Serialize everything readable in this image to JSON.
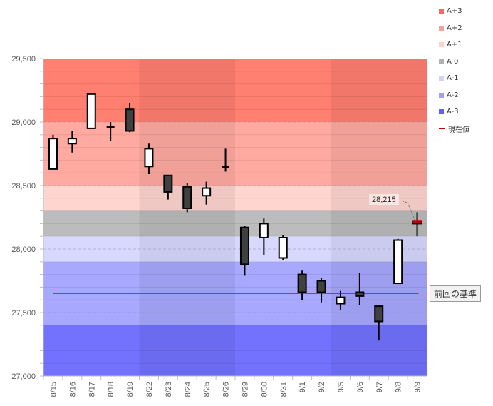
{
  "chart_data": {
    "type": "candlestick",
    "title": "",
    "xlabel": "",
    "ylabel": "",
    "ylim": [
      27000,
      29500
    ],
    "y_major_ticks": [
      27000,
      27500,
      28000,
      28500,
      29000,
      29500
    ],
    "y_tick_labels": [
      "27,000",
      "27,500",
      "28,000",
      "28,500",
      "29,000",
      "29,500"
    ],
    "y_minor_step": 100,
    "grid": true,
    "legend_position": "right",
    "categories": [
      "8/15",
      "8/16",
      "8/17",
      "8/18",
      "8/19",
      "8/22",
      "8/23",
      "8/24",
      "8/25",
      "8/26",
      "8/29",
      "8/30",
      "8/31",
      "9/1",
      "9/2",
      "9/5",
      "9/6",
      "9/7",
      "9/8",
      "9/9"
    ],
    "ohlc": [
      {
        "open": 28630,
        "high": 28900,
        "low": 28630,
        "close": 28870
      },
      {
        "open": 28830,
        "high": 28930,
        "low": 28760,
        "close": 28870
      },
      {
        "open": 28950,
        "high": 29220,
        "low": 28950,
        "close": 29220
      },
      {
        "open": 28950,
        "high": 29000,
        "low": 28850,
        "close": 28960
      },
      {
        "open": 29100,
        "high": 29150,
        "low": 28920,
        "close": 28930
      },
      {
        "open": 28650,
        "high": 28830,
        "low": 28590,
        "close": 28790
      },
      {
        "open": 28580,
        "high": 28580,
        "low": 28390,
        "close": 28450
      },
      {
        "open": 28490,
        "high": 28520,
        "low": 28290,
        "close": 28320
      },
      {
        "open": 28420,
        "high": 28530,
        "low": 28350,
        "close": 28480
      },
      {
        "open": 28640,
        "high": 28790,
        "low": 28610,
        "close": 28645
      },
      {
        "open": 28170,
        "high": 28180,
        "low": 27790,
        "close": 27880
      },
      {
        "open": 28090,
        "high": 28240,
        "low": 27950,
        "close": 28200
      },
      {
        "open": 27930,
        "high": 28110,
        "low": 27910,
        "close": 28090
      },
      {
        "open": 27800,
        "high": 27830,
        "low": 27600,
        "close": 27660
      },
      {
        "open": 27750,
        "high": 27770,
        "low": 27580,
        "close": 27660
      },
      {
        "open": 27570,
        "high": 27670,
        "low": 27520,
        "close": 27620
      },
      {
        "open": 27660,
        "high": 27810,
        "low": 27560,
        "close": 27630
      },
      {
        "open": 27550,
        "high": 27550,
        "low": 27280,
        "close": 27430
      },
      {
        "open": 27730,
        "high": 28080,
        "low": 27730,
        "close": 28070
      },
      {
        "open": 28200,
        "high": 28290,
        "low": 28100,
        "close": 28215
      }
    ],
    "bands": [
      {
        "name": "A+3",
        "from": 29000,
        "to": 29500,
        "color": "#ff7f70"
      },
      {
        "name": "A+2",
        "from": 28500,
        "to": 29000,
        "color": "#ffaaa0"
      },
      {
        "name": "A+1",
        "from": 28300,
        "to": 28500,
        "color": "#ffd5d0"
      },
      {
        "name": "A 0",
        "from": 28100,
        "to": 28300,
        "color": "#bcbcbc"
      },
      {
        "name": "A-1",
        "from": 27900,
        "to": 28100,
        "color": "#d8d8ff"
      },
      {
        "name": "A-2",
        "from": 27400,
        "to": 27900,
        "color": "#a8a8ff"
      },
      {
        "name": "A-3",
        "from": 27000,
        "to": 27400,
        "color": "#7272ff"
      }
    ],
    "shaded_weeks": [
      [
        5,
        9
      ],
      [
        15,
        19
      ]
    ],
    "reference_line": {
      "label": "前回の基準",
      "value": 27650,
      "color": "#e00000"
    },
    "current_value": {
      "label": "現在値",
      "value": 28215,
      "display": "28,215",
      "color": "#c00000"
    },
    "legend": [
      {
        "label": "A+3",
        "color": "#f26b5e",
        "kind": "swatch"
      },
      {
        "label": "A+2",
        "color": "#f9a097",
        "kind": "swatch"
      },
      {
        "label": "A+1",
        "color": "#fcd2cd",
        "kind": "swatch"
      },
      {
        "label": "A 0",
        "color": "#b3b3b3",
        "kind": "swatch"
      },
      {
        "label": "A-1",
        "color": "#d2d2fa",
        "kind": "swatch"
      },
      {
        "label": "A-2",
        "color": "#9f9ff5",
        "kind": "swatch"
      },
      {
        "label": "A-3",
        "color": "#5f5ff0",
        "kind": "swatch"
      },
      {
        "label": "現在値",
        "color": "#c00000",
        "kind": "line"
      }
    ]
  }
}
